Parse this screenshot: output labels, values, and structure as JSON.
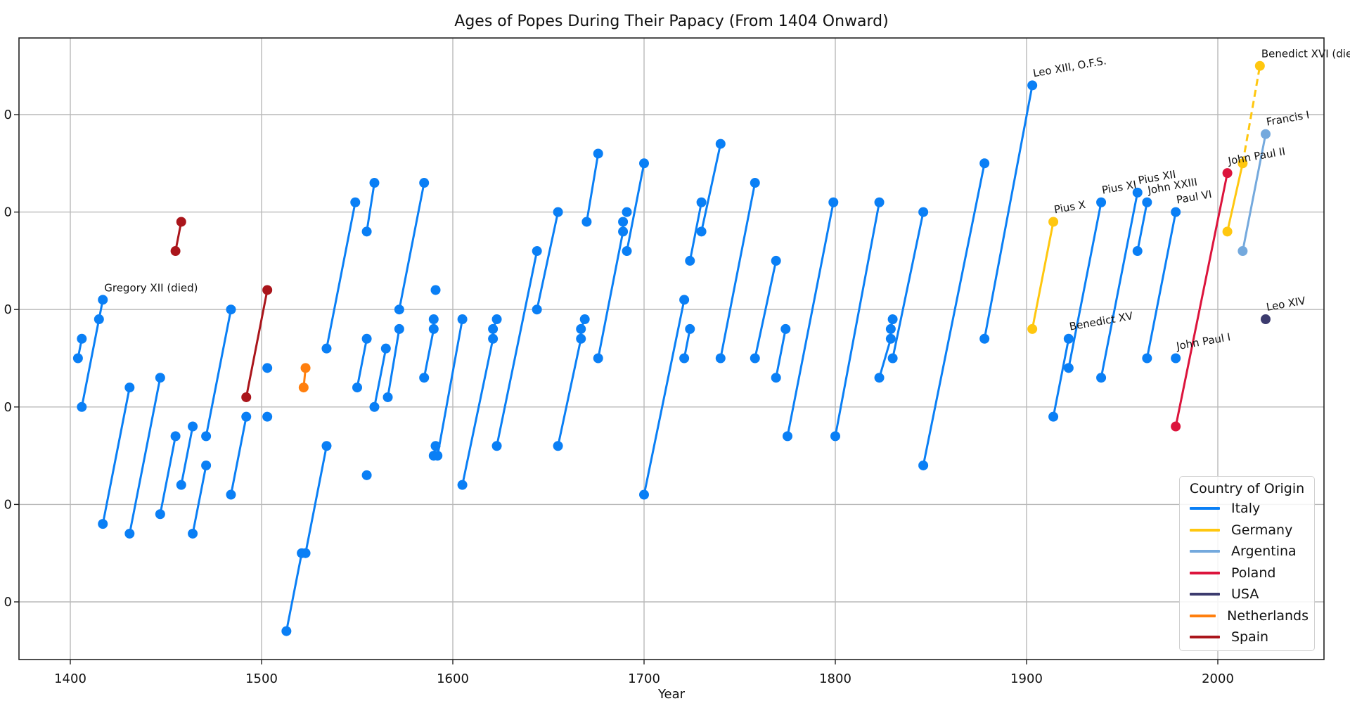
{
  "chart": {
    "title": "Ages of Popes During Their Papacy (From 1404 Onward)",
    "xlabel": "Year",
    "x_ticks": [
      "1400",
      "1500",
      "1600",
      "1700",
      "1800",
      "1900",
      "2000"
    ],
    "y_ticks_visible": [
      "0",
      "0",
      "0",
      "0",
      "0",
      "0"
    ],
    "legend_title": "Country of Origin"
  },
  "legend": [
    {
      "label": "Italy",
      "color": "#0a7ff5"
    },
    {
      "label": "Germany",
      "color": "#ffc70f"
    },
    {
      "label": "Argentina",
      "color": "#74a9dd"
    },
    {
      "label": "Poland",
      "color": "#dc143c"
    },
    {
      "label": "USA",
      "color": "#3c3b6e"
    },
    {
      "label": "Netherlands",
      "color": "#ff7f0e"
    },
    {
      "label": "Spain",
      "color": "#aa151b"
    }
  ],
  "chart_data": {
    "type": "line",
    "title": "Ages of Popes During Their Papacy (From 1404 Onward)",
    "xlabel": "Year",
    "ylabel": "",
    "xlim": [
      1373,
      2056
    ],
    "ylim": [
      34,
      98
    ],
    "x_ticks": [
      1400,
      1500,
      1600,
      1700,
      1800,
      1900,
      2000
    ],
    "y_gridlines": [
      40,
      50,
      60,
      70,
      80,
      90
    ],
    "grid": true,
    "legend_position": "lower right",
    "legend_title": "Country of Origin",
    "series": [
      {
        "name": "Italy",
        "color": "#0a7ff5",
        "segments": [
          [
            [
              1404,
              65
            ],
            [
              1406,
              67
            ]
          ],
          [
            [
              1406,
              60
            ],
            [
              1415,
              69
            ],
            [
              1417,
              71
            ]
          ],
          [
            [
              1417,
              48
            ],
            [
              1431,
              62
            ]
          ],
          [
            [
              1431,
              47
            ],
            [
              1447,
              63
            ]
          ],
          [
            [
              1447,
              49
            ],
            [
              1455,
              57
            ]
          ],
          [
            [
              1458,
              52
            ],
            [
              1464,
              58
            ]
          ],
          [
            [
              1464,
              47
            ],
            [
              1471,
              54
            ]
          ],
          [
            [
              1471,
              57
            ],
            [
              1484,
              70
            ]
          ],
          [
            [
              1484,
              51
            ],
            [
              1492,
              59
            ]
          ],
          [
            [
              1503,
              64
            ]
          ],
          [
            [
              1503,
              59
            ]
          ],
          [
            [
              1513,
              37
            ],
            [
              1521,
              45
            ],
            [
              1523,
              45
            ],
            [
              1534,
              56
            ]
          ],
          [
            [
              1534,
              66
            ],
            [
              1549,
              81
            ]
          ],
          [
            [
              1550,
              62
            ],
            [
              1555,
              67
            ]
          ],
          [
            [
              1555,
              53
            ]
          ],
          [
            [
              1555,
              78
            ],
            [
              1559,
              83
            ]
          ],
          [
            [
              1559,
              60
            ],
            [
              1565,
              66
            ]
          ],
          [
            [
              1566,
              61
            ],
            [
              1572,
              68
            ]
          ],
          [
            [
              1572,
              70
            ],
            [
              1585,
              83
            ]
          ],
          [
            [
              1585,
              63
            ],
            [
              1590,
              68
            ],
            [
              1590,
              69
            ]
          ],
          [
            [
              1591,
              72
            ]
          ],
          [
            [
              1590,
              55
            ],
            [
              1591,
              56
            ]
          ],
          [
            [
              1592,
              55
            ],
            [
              1605,
              69
            ]
          ],
          [
            [
              1605,
              52
            ],
            [
              1621,
              67
            ],
            [
              1621,
              68
            ],
            [
              1623,
              69
            ]
          ],
          [
            [
              1623,
              56
            ],
            [
              1644,
              76
            ]
          ],
          [
            [
              1644,
              70
            ],
            [
              1655,
              80
            ]
          ],
          [
            [
              1655,
              56
            ],
            [
              1667,
              67
            ],
            [
              1667,
              68
            ],
            [
              1669,
              69
            ]
          ],
          [
            [
              1670,
              79
            ],
            [
              1676,
              86
            ]
          ],
          [
            [
              1676,
              65
            ],
            [
              1689,
              78
            ],
            [
              1689,
              79
            ]
          ],
          [
            [
              1691,
              80
            ]
          ],
          [
            [
              1691,
              76
            ],
            [
              1700,
              85
            ]
          ],
          [
            [
              1700,
              51
            ],
            [
              1721,
              71
            ]
          ],
          [
            [
              1721,
              65
            ],
            [
              1724,
              68
            ]
          ],
          [
            [
              1724,
              75
            ],
            [
              1730,
              81
            ]
          ],
          [
            [
              1730,
              78
            ],
            [
              1740,
              87
            ]
          ],
          [
            [
              1740,
              65
            ],
            [
              1758,
              83
            ]
          ],
          [
            [
              1758,
              65
            ],
            [
              1769,
              75
            ]
          ],
          [
            [
              1769,
              63
            ],
            [
              1774,
              68
            ]
          ],
          [
            [
              1775,
              57
            ],
            [
              1799,
              81
            ]
          ],
          [
            [
              1800,
              57
            ],
            [
              1823,
              81
            ]
          ],
          [
            [
              1823,
              63
            ],
            [
              1829,
              67
            ],
            [
              1829,
              68
            ],
            [
              1830,
              69
            ]
          ],
          [
            [
              1830,
              65
            ],
            [
              1846,
              80
            ]
          ],
          [
            [
              1846,
              54
            ],
            [
              1878,
              85
            ]
          ],
          [
            [
              1878,
              67
            ],
            [
              1903,
              93
            ]
          ],
          [
            [
              1914,
              59
            ],
            [
              1922,
              67
            ]
          ],
          [
            [
              1922,
              64
            ],
            [
              1939,
              81
            ]
          ],
          [
            [
              1939,
              63
            ],
            [
              1958,
              82
            ]
          ],
          [
            [
              1958,
              76
            ],
            [
              1963,
              81
            ]
          ],
          [
            [
              1963,
              65
            ],
            [
              1978,
              80
            ]
          ],
          [
            [
              1978,
              65
            ]
          ]
        ]
      },
      {
        "name": "Germany",
        "color": "#ffc70f",
        "segments": [
          [
            [
              1903,
              68
            ],
            [
              1914,
              79
            ]
          ],
          [
            [
              2005,
              78
            ],
            [
              2013,
              85
            ]
          ]
        ],
        "dashed_segments": [
          [
            [
              2013,
              85
            ],
            [
              2022,
              95
            ]
          ]
        ]
      },
      {
        "name": "Argentina",
        "color": "#74a9dd",
        "segments": [
          [
            [
              2013,
              76
            ],
            [
              2025,
              88
            ]
          ]
        ]
      },
      {
        "name": "Poland",
        "color": "#dc143c",
        "segments": [
          [
            [
              1978,
              58
            ],
            [
              2005,
              84
            ]
          ]
        ]
      },
      {
        "name": "USA",
        "color": "#3c3b6e",
        "segments": [
          [
            [
              2025,
              69
            ]
          ]
        ]
      },
      {
        "name": "Netherlands",
        "color": "#ff7f0e",
        "segments": [
          [
            [
              1522,
              62
            ],
            [
              1523,
              64
            ]
          ]
        ]
      },
      {
        "name": "Spain",
        "color": "#aa151b",
        "segments": [
          [
            [
              1455,
              76
            ],
            [
              1458,
              79
            ]
          ],
          [
            [
              1492,
              61
            ],
            [
              1503,
              72
            ]
          ]
        ]
      }
    ],
    "annotations": [
      {
        "text": "Gregory XII (died)",
        "x": 1417,
        "y": 71,
        "rotate": 0
      },
      {
        "text": "Leo XIII, O.F.S.",
        "x": 1903,
        "y": 93,
        "rotate": -10
      },
      {
        "text": "Benedict XVI (died)",
        "x": 2022,
        "y": 95,
        "rotate": 0
      },
      {
        "text": "Francis I",
        "x": 2025,
        "y": 88,
        "rotate": -10
      },
      {
        "text": "John Paul II",
        "x": 2005,
        "y": 84,
        "rotate": -10
      },
      {
        "text": "Pius X",
        "x": 1914,
        "y": 79,
        "rotate": -10
      },
      {
        "text": "Pius XI",
        "x": 1939,
        "y": 81,
        "rotate": -10
      },
      {
        "text": "Pius XII",
        "x": 1958,
        "y": 82,
        "rotate": -10
      },
      {
        "text": "John XXIII",
        "x": 1963,
        "y": 81,
        "rotate": -10
      },
      {
        "text": "Paul VI",
        "x": 1978,
        "y": 80,
        "rotate": -10
      },
      {
        "text": "Benedict XV",
        "x": 1922,
        "y": 67,
        "rotate": -10
      },
      {
        "text": "John Paul I",
        "x": 1978,
        "y": 65,
        "rotate": -10
      },
      {
        "text": "Leo XIV",
        "x": 2025,
        "y": 69,
        "rotate": -10
      }
    ]
  }
}
